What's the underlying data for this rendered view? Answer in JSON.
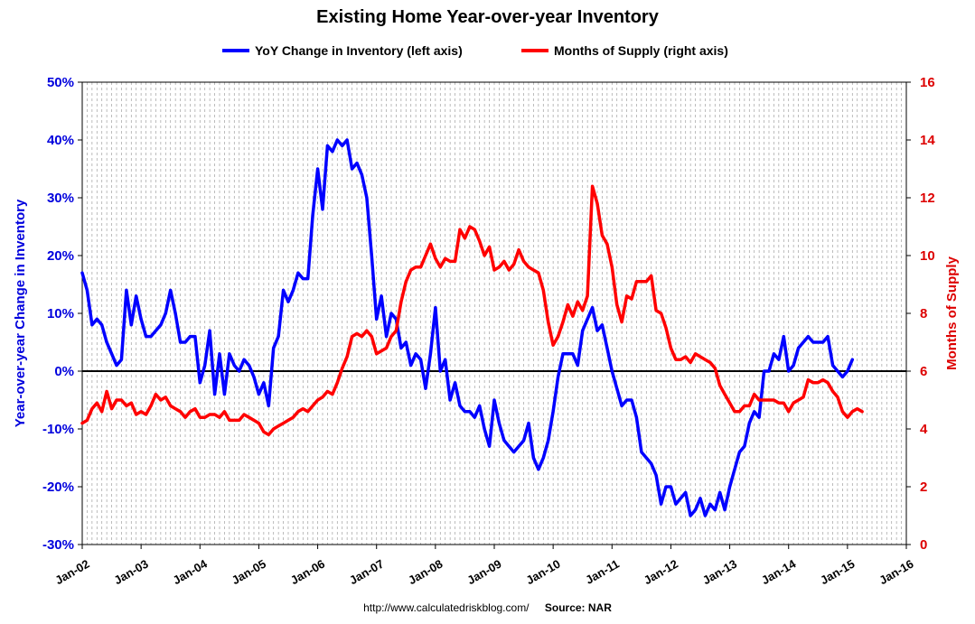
{
  "chart_data": {
    "type": "line",
    "title": "Existing Home Year-over-year Inventory",
    "legend": {
      "placement": "top",
      "items": [
        {
          "label": "YoY Change in Inventory (left axis)",
          "color": "#0000ff"
        },
        {
          "label": "Months of Supply (right axis)",
          "color": "#ff0000"
        }
      ]
    },
    "ylabel_left": "Year-over-year Change in Inventory",
    "ylabel_right": "Months of Supply",
    "ylim_left": [
      -30,
      50
    ],
    "ylim_right": [
      0,
      16
    ],
    "left_ticks": [
      "-30%",
      "-20%",
      "-10%",
      "0%",
      "10%",
      "20%",
      "30%",
      "40%",
      "50%"
    ],
    "right_ticks": [
      "0",
      "2",
      "4",
      "6",
      "8",
      "10",
      "12",
      "14",
      "16"
    ],
    "x_ticks": [
      "Jan-02",
      "Jan-03",
      "Jan-04",
      "Jan-05",
      "Jan-06",
      "Jan-07",
      "Jan-08",
      "Jan-09",
      "Jan-10",
      "Jan-11",
      "Jan-12",
      "Jan-13",
      "Jan-14",
      "Jan-15",
      "Jan-16"
    ],
    "x_range_years": [
      2002,
      2016
    ],
    "grid": "vertical-monthly-dashed",
    "series": [
      {
        "name": "YoY Change in Inventory (left axis)",
        "axis": "left",
        "color": "#0000ff",
        "start": "Jan-02",
        "values": [
          17,
          14,
          8,
          9,
          8,
          5,
          3,
          1,
          2,
          14,
          8,
          13,
          9,
          6,
          6,
          7,
          8,
          10,
          14,
          10,
          5,
          5,
          6,
          6,
          -2,
          1,
          7,
          -4,
          3,
          -4,
          3,
          1,
          0,
          2,
          1,
          -1,
          -4,
          -2,
          -6,
          4,
          6,
          14,
          12,
          14,
          17,
          16,
          16,
          27,
          35,
          28,
          39,
          38,
          40,
          39,
          40,
          35,
          36,
          34,
          30,
          20,
          9,
          13,
          6,
          10,
          9,
          4,
          5,
          1,
          3,
          2,
          -3,
          3,
          11,
          0,
          2,
          -5,
          -2,
          -6,
          -7,
          -7,
          -8,
          -6,
          -10,
          -13,
          -5,
          -9,
          -12,
          -13,
          -14,
          -13,
          -12,
          -9,
          -15,
          -17,
          -15,
          -12,
          -7,
          -1,
          3,
          3,
          3,
          1,
          7,
          9,
          11,
          7,
          8,
          4,
          0,
          -3,
          -6,
          -5,
          -5,
          -8,
          -14,
          -15,
          -16,
          -18,
          -23,
          -20,
          -20,
          -23,
          -22,
          -21,
          -25,
          -24,
          -22,
          -25,
          -23,
          -24,
          -21,
          -24,
          -20,
          -17,
          -14,
          -13,
          -9,
          -7,
          -8,
          0,
          0,
          3,
          2,
          6,
          0,
          1,
          4,
          5,
          6,
          5,
          5,
          5,
          6,
          1,
          0,
          -1,
          0,
          2
        ]
      },
      {
        "name": "Months of Supply (right axis)",
        "axis": "right",
        "color": "#ff0000",
        "start": "Jan-02",
        "values": [
          4.2,
          4.3,
          4.7,
          4.9,
          4.6,
          5.3,
          4.7,
          5.0,
          5.0,
          4.8,
          4.9,
          4.5,
          4.6,
          4.5,
          4.8,
          5.2,
          5.0,
          5.1,
          4.8,
          4.7,
          4.6,
          4.4,
          4.6,
          4.7,
          4.4,
          4.4,
          4.5,
          4.5,
          4.4,
          4.6,
          4.3,
          4.3,
          4.3,
          4.5,
          4.4,
          4.3,
          4.2,
          3.9,
          3.8,
          4.0,
          4.1,
          4.2,
          4.3,
          4.4,
          4.6,
          4.7,
          4.6,
          4.8,
          5.0,
          5.1,
          5.3,
          5.2,
          5.6,
          6.1,
          6.5,
          7.2,
          7.3,
          7.2,
          7.4,
          7.2,
          6.6,
          6.7,
          6.8,
          7.2,
          7.4,
          8.4,
          9.1,
          9.5,
          9.6,
          9.6,
          10.0,
          10.4,
          9.9,
          9.6,
          9.9,
          9.8,
          9.8,
          10.9,
          10.6,
          11.0,
          10.9,
          10.5,
          10.0,
          10.3,
          9.5,
          9.6,
          9.8,
          9.5,
          9.7,
          10.2,
          9.8,
          9.6,
          9.5,
          9.4,
          8.8,
          7.7,
          6.9,
          7.2,
          7.7,
          8.3,
          7.9,
          8.4,
          8.1,
          8.6,
          12.4,
          11.8,
          10.7,
          10.4,
          9.6,
          8.3,
          7.7,
          8.6,
          8.5,
          9.1,
          9.1,
          9.1,
          9.3,
          8.1,
          8.0,
          7.5,
          6.8,
          6.4,
          6.4,
          6.5,
          6.3,
          6.6,
          6.5,
          6.4,
          6.3,
          6.1,
          5.5,
          5.2,
          4.9,
          4.6,
          4.6,
          4.8,
          4.8,
          5.2,
          5.0,
          5.0,
          5.0,
          5.0,
          4.9,
          4.9,
          4.6,
          4.9,
          5.0,
          5.1,
          5.7,
          5.6,
          5.6,
          5.7,
          5.6,
          5.3,
          5.1,
          4.6,
          4.4,
          4.6,
          4.7,
          4.6
        ]
      }
    ]
  },
  "source": {
    "url": "http://www.calculatedriskblog.com/",
    "label": "Source: NAR"
  }
}
